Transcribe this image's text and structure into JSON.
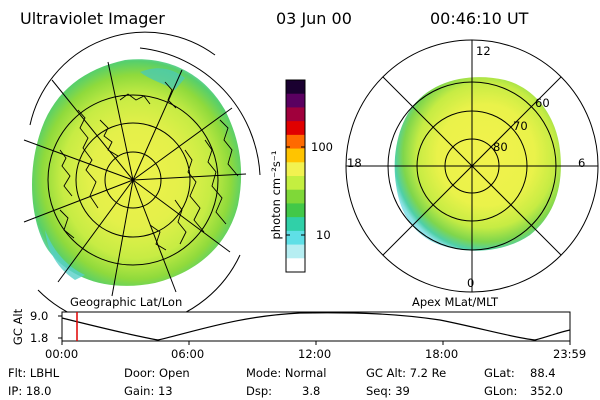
{
  "header": {
    "instrument": "Ultraviolet Imager",
    "date": "03 Jun 00",
    "time": "00:46:10 UT"
  },
  "colorbar": {
    "unit_label": "photon cm⁻²s⁻¹",
    "ticks": [
      "100",
      "10"
    ],
    "colors": [
      "#1a0030",
      "#5a0060",
      "#a0003c",
      "#e00000",
      "#ff6a00",
      "#ffc400",
      "#f2f250",
      "#c4ef40",
      "#7fd838",
      "#42c848",
      "#30d0a8",
      "#5fdfe6",
      "#b6eef2",
      "#ffffff"
    ]
  },
  "left_panel": {
    "caption": "Geographic Lat/Lon"
  },
  "right_panel": {
    "caption": "Apex MLat/MLT",
    "mlt_labels": {
      "top": "12",
      "left": "18",
      "right": "6",
      "bottom": "0"
    },
    "lat_labels": [
      "60",
      "70",
      "80"
    ]
  },
  "orbit_plot": {
    "ylabel": "GC Alt",
    "yticks": [
      "9.0",
      "1.8"
    ],
    "xticks": [
      "00:00",
      "06:00",
      "12:00",
      "18:00",
      "23:59"
    ],
    "marker_time": "00:46:10"
  },
  "status": {
    "row1": {
      "flt": "Flt: LBHL",
      "door": "Door: Open",
      "mode": "Mode: Normal",
      "gcalt": "GC Alt: 7.2 Re",
      "glat_label": "GLat:",
      "glat_value": "88.4"
    },
    "row2": {
      "ip": "IP: 18.0",
      "gain": "Gain: 13",
      "dsp_label": "Dsp:",
      "dsp_value": "3.8",
      "seq": "Seq: 39",
      "glon_label": "GLon:",
      "glon_value": "352.0"
    }
  }
}
